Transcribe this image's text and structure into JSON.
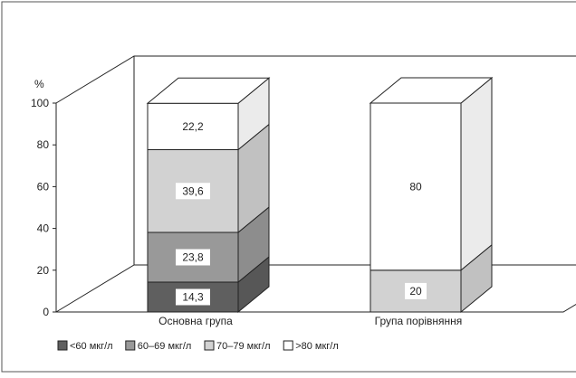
{
  "chart_data": {
    "type": "bar",
    "stacked": true,
    "three_d": true,
    "y_unit_label": "%",
    "ylim": [
      0,
      100
    ],
    "yticks": [
      0,
      20,
      40,
      60,
      80,
      100
    ],
    "categories": [
      "Основна група",
      "Група порівняння"
    ],
    "series": [
      {
        "name": "<60 мкг/л",
        "values": [
          14.3,
          0
        ],
        "labels": [
          "14,3",
          "0"
        ],
        "color": "#5f5f5f"
      },
      {
        "name": "60–69 мкг/л",
        "values": [
          23.8,
          0
        ],
        "labels": [
          "23,8",
          ""
        ],
        "color": "#999999"
      },
      {
        "name": "70–79 мкг/л",
        "values": [
          39.6,
          20
        ],
        "labels": [
          "39,6",
          "20"
        ],
        "color": "#d2d2d2"
      },
      {
        "name": ">80 мкг/л",
        "values": [
          22.2,
          80
        ],
        "labels": [
          "22,2",
          "80"
        ],
        "color": "#ffffff"
      }
    ],
    "grid": false,
    "legend_position": "bottom"
  }
}
